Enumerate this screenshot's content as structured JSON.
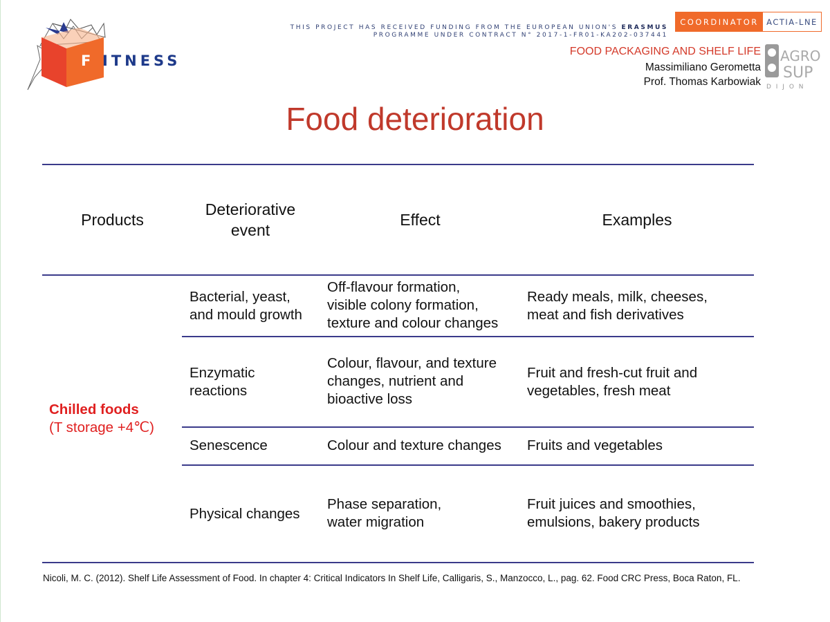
{
  "header": {
    "logo_text": "FITNESS",
    "logo_initial": "F",
    "logo_rest": "ITNESS",
    "funding_line1_prefix": "THIS PROJECT HAS RECEIVED FUNDING FROM THE EUROPEAN UNION'S ",
    "funding_line1_bold": "ERASMUS",
    "funding_line2": "PROGRAMME UNDER CONTRACT N° 2017-1-FR01-KA202-037441",
    "coordinator_label": "COORDINATOR",
    "coordinator_name": "ACTIA-LNE",
    "course_title": "FOOD PACKAGING AND SHELF LIFE",
    "author1": "Massimiliano Gerometta",
    "author2": "Prof. Thomas Karbowiak",
    "partner_logo_text": [
      "AGRO",
      "SUP",
      "D I J O N"
    ]
  },
  "slide": {
    "title": "Food deterioration"
  },
  "table": {
    "headers": [
      "Products",
      "Deteriorative\nevent",
      "Effect",
      "Examples"
    ],
    "product": {
      "name": "Chilled foods",
      "condition": "(T storage +4℃)"
    },
    "rows": [
      {
        "event": "Bacterial, yeast,\nand mould growth",
        "effect": "Off-flavour formation,\nvisible colony formation,\ntexture and colour changes",
        "examples": "Ready meals, milk, cheeses,\nmeat and fish derivatives"
      },
      {
        "event": "Enzymatic\nreactions",
        "effect": "Colour, flavour, and texture\nchanges, nutrient and\nbioactive loss",
        "examples": "Fruit and fresh-cut fruit and\nvegetables, fresh meat"
      },
      {
        "event": "Senescence",
        "effect": "Colour and texture changes",
        "examples": "Fruits and vegetables"
      },
      {
        "event": "Physical changes",
        "effect": "Phase separation,\nwater migration",
        "examples": "Fruit juices and smoothies,\nemulsions, bakery products"
      }
    ]
  },
  "reference": "Nicoli, M. C. (2012). Shelf Life Assessment of Food. In chapter 4: Critical Indicators In Shelf Life, Calligaris, S., Manzocco, L., pag. 62. Food CRC Press, Boca Raton, FL.",
  "colors": {
    "title_red": "#c0392b",
    "product_red": "#e02020",
    "rule_navy": "#3a3a8a",
    "accent_orange": "#f06a2a"
  }
}
